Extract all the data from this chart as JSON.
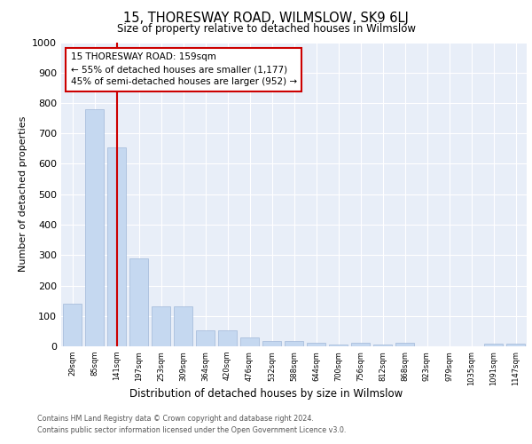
{
  "title": "15, THORESWAY ROAD, WILMSLOW, SK9 6LJ",
  "subtitle": "Size of property relative to detached houses in Wilmslow",
  "xlabel": "Distribution of detached houses by size in Wilmslow",
  "ylabel": "Number of detached properties",
  "categories": [
    "29sqm",
    "85sqm",
    "141sqm",
    "197sqm",
    "253sqm",
    "309sqm",
    "364sqm",
    "420sqm",
    "476sqm",
    "532sqm",
    "588sqm",
    "644sqm",
    "700sqm",
    "756sqm",
    "812sqm",
    "868sqm",
    "923sqm",
    "979sqm",
    "1035sqm",
    "1091sqm",
    "1147sqm"
  ],
  "values": [
    140,
    780,
    655,
    290,
    130,
    130,
    52,
    52,
    28,
    18,
    18,
    11,
    5,
    11,
    5,
    11,
    0,
    0,
    0,
    8,
    8
  ],
  "bar_color": "#c5d8f0",
  "bar_edge_color": "#a0b8d8",
  "vline_x_index": 2,
  "vline_color": "#cc0000",
  "annotation_text_line1": "15 THORESWAY ROAD: 159sqm",
  "annotation_text_line2": "← 55% of detached houses are smaller (1,177)",
  "annotation_text_line3": "45% of semi-detached houses are larger (952) →",
  "annotation_box_color": "#ffffff",
  "annotation_box_edge": "#cc0000",
  "ylim": [
    0,
    1000
  ],
  "yticks": [
    0,
    100,
    200,
    300,
    400,
    500,
    600,
    700,
    800,
    900,
    1000
  ],
  "background_color": "#e8eef8",
  "footer_line1": "Contains HM Land Registry data © Crown copyright and database right 2024.",
  "footer_line2": "Contains public sector information licensed under the Open Government Licence v3.0."
}
